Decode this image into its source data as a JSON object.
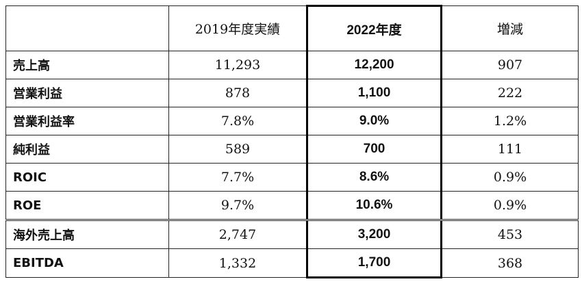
{
  "table": {
    "headers": [
      "",
      "2019年度実績",
      "2022年度",
      "増減"
    ],
    "rows": [
      {
        "label": "売上高",
        "actual_2019": "11,293",
        "target_2022": "12,200",
        "change": "907"
      },
      {
        "label": "営業利益",
        "actual_2019": "878",
        "target_2022": "1,100",
        "change": "222"
      },
      {
        "label": "営業利益率",
        "actual_2019": "7.8%",
        "target_2022": "9.0%",
        "change": "1.2%"
      },
      {
        "label": "純利益",
        "actual_2019": "589",
        "target_2022": "700",
        "change": "111"
      },
      {
        "label": "ROIC",
        "actual_2019": "7.7%",
        "target_2022": "8.6%",
        "change": "0.9%"
      },
      {
        "label": "ROE",
        "actual_2019": "9.7%",
        "target_2022": "10.6%",
        "change": "0.9%"
      },
      {
        "label": "海外売上高",
        "actual_2019": "2,747",
        "target_2022": "3,200",
        "change": "453"
      },
      {
        "label": "EBITDA",
        "actual_2019": "1,332",
        "target_2022": "1,700",
        "change": "368"
      }
    ]
  }
}
